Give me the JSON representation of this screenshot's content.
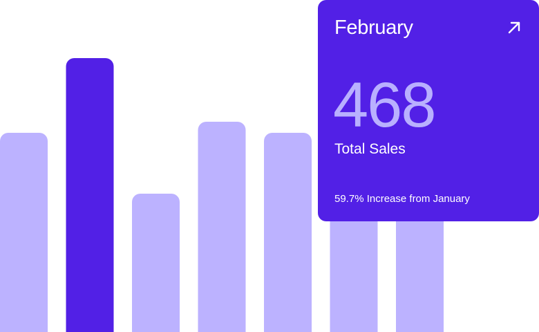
{
  "chart_data": {
    "type": "bar",
    "categories": [
      "",
      "",
      "",
      "",
      "",
      "",
      ""
    ],
    "values": [
      288,
      396,
      200,
      304,
      288,
      288,
      288
    ],
    "highlight_index": 1,
    "colors": {
      "bar": "#bcb2ff",
      "highlight": "#5220e6"
    },
    "title": "",
    "xlabel": "",
    "ylabel": "",
    "grid": false
  },
  "card": {
    "month": "February",
    "value": "468",
    "label": "Total Sales",
    "footnote": "59.7% Increase from January",
    "arrow_icon": "arrow-up-right-icon",
    "colors": {
      "background": "#5220e6",
      "value": "#b9b0ff",
      "text": "#ffffff"
    }
  }
}
